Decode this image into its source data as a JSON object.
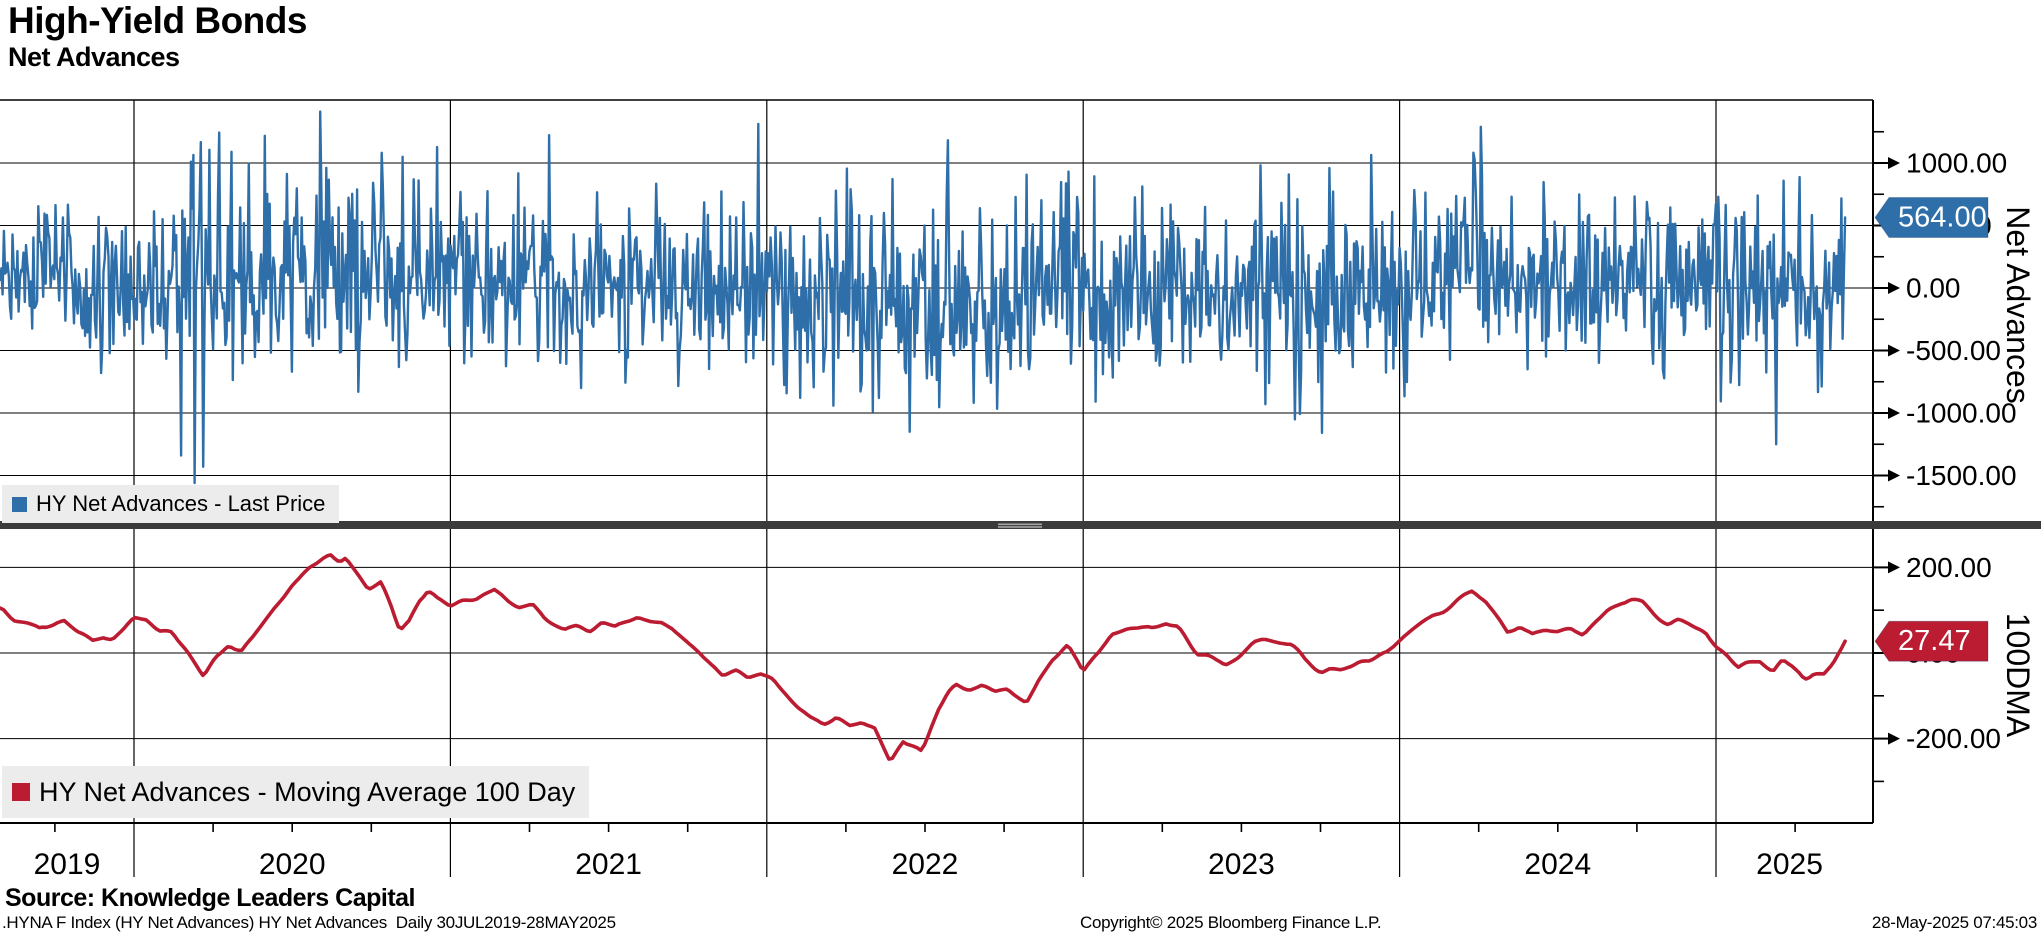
{
  "header": {
    "title": "High-Yield Bonds",
    "subtitle": "Net Advances"
  },
  "legends": {
    "top": {
      "label": "HY Net Advances - Last Price"
    },
    "bottom": {
      "label": "HY Net Advances - Moving Average 100 Day"
    }
  },
  "footer": {
    "source": "Source: Knowledge Leaders Capital",
    "ticker_line": ".HYNA F Index (HY Net Advances) HY Net Advances  Daily 30JUL2019-28MAY2025",
    "copyright": "Copyright© 2025 Bloomberg Finance L.P.",
    "timestamp": "28-May-2025 07:45:03"
  },
  "colors": {
    "series_blue": "#2e6fa9",
    "series_red": "#bb1c32",
    "tag_text": "#ffffff",
    "grid": "#000000",
    "legend_bg": "#ececec",
    "divider": "#3b3b3b",
    "divider_grip": "#a5a5a5"
  },
  "xaxis": {
    "years": [
      "2019",
      "2020",
      "2021",
      "2022",
      "2023",
      "2024",
      "2025"
    ],
    "x_domain_years": [
      2019.577,
      2025.408
    ],
    "quarter_tick_step": 0.25,
    "period": "30JUL2019-28MAY2025"
  },
  "chart_data": [
    {
      "type": "line",
      "panel": "top",
      "series_name": "HY Net Advances - Last Price",
      "color_key": "series_blue",
      "axis_title": "Net Advances",
      "frequency": "daily",
      "ylim": [
        -1890,
        1504
      ],
      "yticks": [
        {
          "v": 1000,
          "label": "1000.00"
        },
        {
          "v": 500,
          "label": "500.00"
        },
        {
          "v": 0,
          "label": "0.00"
        },
        {
          "v": -500,
          "label": "-500.00"
        },
        {
          "v": -1000,
          "label": "-1000.00"
        },
        {
          "v": -1500,
          "label": "-1500.00"
        }
      ],
      "minor_tick_step": 250,
      "grid": true,
      "legend_position": "bottom-left",
      "last_value": 564.0,
      "last_value_label": "564.00",
      "n_points": 1500,
      "seed": 90210,
      "mean_follows": "100_day_moving_average_anchors",
      "noise_std_segments": [
        [
          2019.577,
          290
        ],
        [
          2020.0,
          340
        ],
        [
          2020.13,
          520
        ],
        [
          2020.32,
          430
        ],
        [
          2021.0,
          330
        ],
        [
          2022.0,
          440
        ],
        [
          2023.0,
          400
        ],
        [
          2024.0,
          340
        ],
        [
          2025.0,
          390
        ]
      ],
      "extreme_points": [
        [
          2020.15,
          -1340
        ],
        [
          2020.19,
          -1560
        ],
        [
          2020.22,
          -1430
        ],
        [
          2020.27,
          1243
        ],
        [
          2020.31,
          1090
        ],
        [
          2020.85,
          1050
        ],
        [
          2022.45,
          -1150
        ],
        [
          2023.91,
          1065
        ],
        [
          2025.19,
          -1250
        ]
      ]
    },
    {
      "type": "line",
      "panel": "bottom",
      "series_name": "HY Net Advances - Moving Average 100 Day",
      "color_key": "series_red",
      "axis_title": "100DMA",
      "ylim": [
        -397,
        290
      ],
      "yticks": [
        {
          "v": 200,
          "label": "200.00"
        },
        {
          "v": 0,
          "label": "0.00"
        },
        {
          "v": -200,
          "label": "-200.00"
        }
      ],
      "minor_tick_step": 100,
      "grid": true,
      "legend_position": "bottom-left",
      "last_value": 27.47,
      "last_value_label": "27.47",
      "wiggle_seed": 777,
      "anchors": [
        [
          2019.577,
          105
        ],
        [
          2019.62,
          75
        ],
        [
          2019.66,
          68
        ],
        [
          2019.7,
          58
        ],
        [
          2019.74,
          70
        ],
        [
          2019.78,
          75
        ],
        [
          2019.82,
          45
        ],
        [
          2019.87,
          28
        ],
        [
          2019.9,
          38
        ],
        [
          2019.93,
          33
        ],
        [
          2019.97,
          60
        ],
        [
          2020.0,
          84
        ],
        [
          2020.04,
          80
        ],
        [
          2020.08,
          50
        ],
        [
          2020.12,
          48
        ],
        [
          2020.16,
          10
        ],
        [
          2020.22,
          -54
        ],
        [
          2020.26,
          -10
        ],
        [
          2020.3,
          20
        ],
        [
          2020.34,
          6
        ],
        [
          2020.38,
          40
        ],
        [
          2020.44,
          100
        ],
        [
          2020.5,
          160
        ],
        [
          2020.56,
          205
        ],
        [
          2020.62,
          232
        ],
        [
          2020.65,
          210
        ],
        [
          2020.67,
          222
        ],
        [
          2020.7,
          195
        ],
        [
          2020.74,
          152
        ],
        [
          2020.78,
          168
        ],
        [
          2020.81,
          120
        ],
        [
          2020.84,
          58
        ],
        [
          2020.87,
          80
        ],
        [
          2020.9,
          120
        ],
        [
          2020.93,
          143
        ],
        [
          2020.96,
          125
        ],
        [
          2021.0,
          111
        ],
        [
          2021.04,
          125
        ],
        [
          2021.08,
          130
        ],
        [
          2021.14,
          150
        ],
        [
          2021.18,
          120
        ],
        [
          2021.22,
          110
        ],
        [
          2021.26,
          115
        ],
        [
          2021.3,
          80
        ],
        [
          2021.36,
          52
        ],
        [
          2021.4,
          60
        ],
        [
          2021.44,
          55
        ],
        [
          2021.48,
          70
        ],
        [
          2021.52,
          62
        ],
        [
          2021.59,
          87
        ],
        [
          2021.63,
          80
        ],
        [
          2021.66,
          70
        ],
        [
          2021.7,
          60
        ],
        [
          2021.74,
          30
        ],
        [
          2021.78,
          5
        ],
        [
          2021.82,
          -25
        ],
        [
          2021.86,
          -55
        ],
        [
          2021.9,
          -45
        ],
        [
          2021.94,
          -60
        ],
        [
          2021.98,
          -48
        ],
        [
          2022.02,
          -60
        ],
        [
          2022.06,
          -95
        ],
        [
          2022.1,
          -130
        ],
        [
          2022.14,
          -152
        ],
        [
          2022.18,
          -165
        ],
        [
          2022.22,
          -150
        ],
        [
          2022.26,
          -172
        ],
        [
          2022.3,
          -162
        ],
        [
          2022.34,
          -175
        ],
        [
          2022.39,
          -257
        ],
        [
          2022.43,
          -205
        ],
        [
          2022.46,
          -215
        ],
        [
          2022.49,
          -229
        ],
        [
          2022.54,
          -140
        ],
        [
          2022.58,
          -90
        ],
        [
          2022.6,
          -73
        ],
        [
          2022.64,
          -85
        ],
        [
          2022.68,
          -75
        ],
        [
          2022.72,
          -95
        ],
        [
          2022.76,
          -88
        ],
        [
          2022.8,
          -110
        ],
        [
          2022.82,
          -119
        ],
        [
          2022.86,
          -60
        ],
        [
          2022.9,
          -15
        ],
        [
          2022.93,
          5
        ],
        [
          2022.95,
          15
        ],
        [
          2022.98,
          -20
        ],
        [
          2023.0,
          -46
        ],
        [
          2023.04,
          -5
        ],
        [
          2023.09,
          44
        ],
        [
          2023.14,
          52
        ],
        [
          2023.18,
          60
        ],
        [
          2023.22,
          55
        ],
        [
          2023.26,
          72
        ],
        [
          2023.3,
          60
        ],
        [
          2023.33,
          30
        ],
        [
          2023.36,
          0
        ],
        [
          2023.4,
          -10
        ],
        [
          2023.45,
          -27
        ],
        [
          2023.5,
          5
        ],
        [
          2023.54,
          30
        ],
        [
          2023.57,
          35
        ],
        [
          2023.62,
          25
        ],
        [
          2023.66,
          20
        ],
        [
          2023.7,
          -15
        ],
        [
          2023.76,
          -40
        ],
        [
          2023.8,
          -32
        ],
        [
          2023.85,
          -30
        ],
        [
          2023.9,
          -20
        ],
        [
          2023.96,
          5
        ],
        [
          2024.0,
          30
        ],
        [
          2024.05,
          60
        ],
        [
          2024.1,
          85
        ],
        [
          2024.13,
          95
        ],
        [
          2024.18,
          125
        ],
        [
          2024.23,
          147
        ],
        [
          2024.27,
          120
        ],
        [
          2024.3,
          90
        ],
        [
          2024.34,
          52
        ],
        [
          2024.38,
          68
        ],
        [
          2024.42,
          45
        ],
        [
          2024.46,
          55
        ],
        [
          2024.5,
          48
        ],
        [
          2024.54,
          55
        ],
        [
          2024.58,
          40
        ],
        [
          2024.62,
          75
        ],
        [
          2024.66,
          100
        ],
        [
          2024.7,
          120
        ],
        [
          2024.73,
          130
        ],
        [
          2024.77,
          122
        ],
        [
          2024.81,
          95
        ],
        [
          2024.85,
          70
        ],
        [
          2024.88,
          78
        ],
        [
          2024.92,
          70
        ],
        [
          2024.97,
          44
        ],
        [
          2025.0,
          15
        ],
        [
          2025.04,
          -10
        ],
        [
          2025.07,
          -35
        ],
        [
          2025.1,
          -25
        ],
        [
          2025.14,
          -20
        ],
        [
          2025.18,
          -45
        ],
        [
          2025.21,
          -18
        ],
        [
          2025.24,
          -35
        ],
        [
          2025.28,
          -62
        ],
        [
          2025.31,
          -45
        ],
        [
          2025.34,
          -48
        ],
        [
          2025.37,
          -25
        ],
        [
          2025.408,
          27.47
        ]
      ]
    }
  ]
}
